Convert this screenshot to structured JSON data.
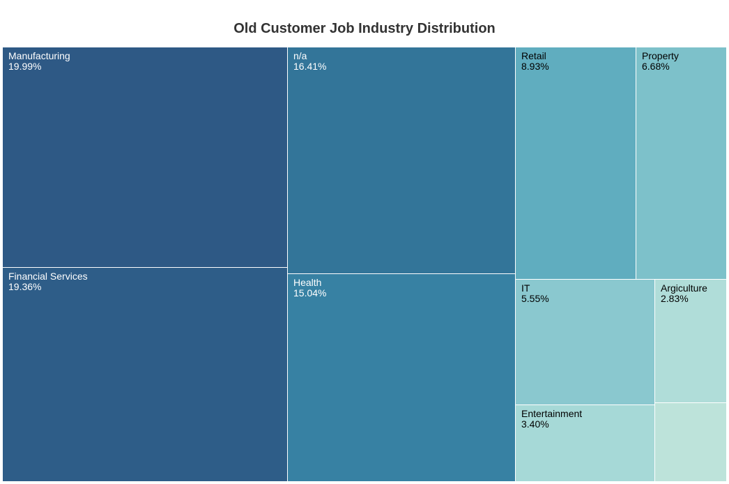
{
  "chart_data": {
    "type": "treemap",
    "title": "Old Customer Job Industry Distribution",
    "items": [
      {
        "name": "Manufacturing",
        "value": 19.99,
        "label": "19.99%",
        "color": "#2e5985",
        "text_color": "#ffffff"
      },
      {
        "name": "Financial Services",
        "value": 19.36,
        "label": "19.36%",
        "color": "#2e5d88",
        "text_color": "#ffffff"
      },
      {
        "name": "n/a",
        "value": 16.41,
        "label": "16.41%",
        "color": "#337599",
        "text_color": "#ffffff"
      },
      {
        "name": "Health",
        "value": 15.04,
        "label": "15.04%",
        "color": "#3781a3",
        "text_color": "#ffffff"
      },
      {
        "name": "Retail",
        "value": 8.93,
        "label": "8.93%",
        "color": "#60adbf",
        "text_color": "#000000"
      },
      {
        "name": "Property",
        "value": 6.68,
        "label": "6.68%",
        "color": "#7dc1ca",
        "text_color": "#000000"
      },
      {
        "name": "IT",
        "value": 5.55,
        "label": "5.55%",
        "color": "#8ac8cf",
        "text_color": "#000000"
      },
      {
        "name": "Entertainment",
        "value": 3.4,
        "label": "3.40%",
        "color": "#a6d9d7",
        "text_color": "#000000"
      },
      {
        "name": "Argiculture",
        "value": 2.83,
        "label": "2.83%",
        "color": "#b0ddd9",
        "text_color": "#000000"
      },
      {
        "name": "",
        "value": 1.81,
        "label": "",
        "color": "#bde3da",
        "text_color": "#000000"
      }
    ]
  }
}
